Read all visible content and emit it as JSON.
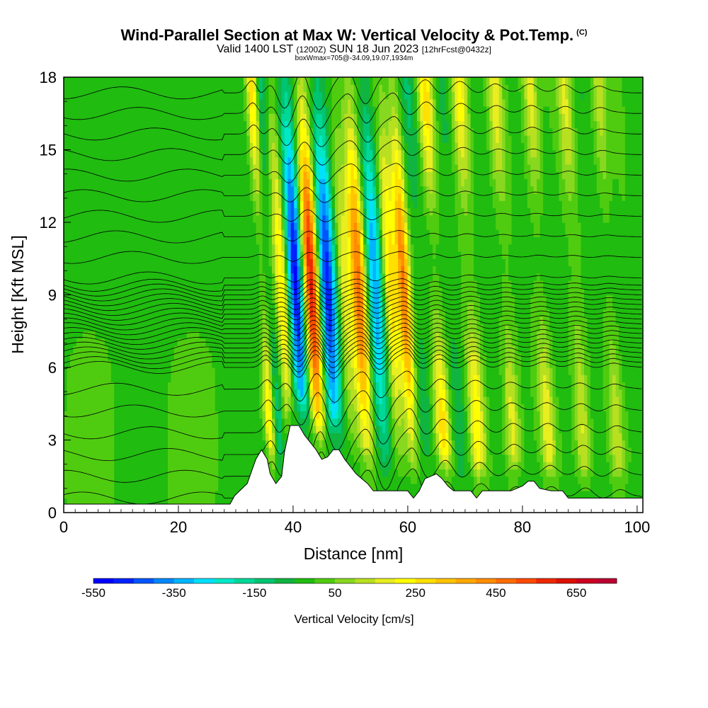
{
  "chart_data": {
    "type": "heatmap",
    "title": "Wind-Parallel Section at Max W: Vertical Velocity & Pot.Temp.",
    "title_mark": "(C)",
    "subtitle_main": "Valid 1400 LST",
    "subtitle_utc": "(1200Z)",
    "subtitle_date": "SUN 18 Jun 2023",
    "subtitle_fcst": "[12hrFcst@0432z]",
    "subtitle2": "boxWmax=705@-34.09,19.07,1934m",
    "xlabel": "Distance [nm]",
    "ylabel": "Height [Kft MSL]",
    "xlim": [
      0,
      101
    ],
    "ylim": [
      0,
      18
    ],
    "xticks": [
      0,
      20,
      40,
      60,
      80,
      100
    ],
    "yticks": [
      0,
      3,
      6,
      9,
      12,
      15,
      18
    ],
    "colorbar": {
      "label": "Vertical Velocity [cm/s]",
      "min": -550,
      "max": 750,
      "step": 50,
      "tick_values": [
        -550,
        -350,
        -150,
        50,
        250,
        450,
        650
      ],
      "colors": [
        "#0000ff",
        "#0022ff",
        "#0055ff",
        "#0088ff",
        "#00b4ff",
        "#00e0ff",
        "#00e8c8",
        "#00d898",
        "#00c470",
        "#10b440",
        "#20bc10",
        "#50cc10",
        "#88d820",
        "#b8e020",
        "#e8ee20",
        "#ffff00",
        "#ffe000",
        "#ffc400",
        "#ffa800",
        "#ff8c00",
        "#ff6c00",
        "#ff4a00",
        "#ee2800",
        "#dd1000",
        "#cc0020",
        "#bb0030"
      ]
    },
    "velocity_bands": [
      {
        "x": 36,
        "value": 280,
        "width": 0.9
      },
      {
        "x": 37.6,
        "value": -120,
        "width": 0.8
      },
      {
        "x": 39.5,
        "value": 300,
        "width": 1.2
      },
      {
        "x": 42.0,
        "value": -550,
        "width": 1.6
      },
      {
        "x": 44.5,
        "value": 705,
        "width": 1.6
      },
      {
        "x": 47.3,
        "value": -500,
        "width": 1.6
      },
      {
        "x": 50.2,
        "value": 180,
        "width": 1.2
      },
      {
        "x": 52.8,
        "value": 500,
        "width": 1.4
      },
      {
        "x": 55.7,
        "value": -330,
        "width": 1.4
      },
      {
        "x": 58.4,
        "value": 300,
        "width": 1.3
      },
      {
        "x": 60.7,
        "value": 450,
        "width": 1.1
      },
      {
        "x": 63.2,
        "value": -80,
        "width": 1.3
      },
      {
        "x": 66.2,
        "value": 300,
        "width": 1.3
      },
      {
        "x": 69.2,
        "value": -60,
        "width": 1.3
      },
      {
        "x": 72.2,
        "value": 260,
        "width": 1.4
      },
      {
        "x": 75.2,
        "value": -20,
        "width": 1.3
      },
      {
        "x": 78.4,
        "value": 200,
        "width": 1.3
      },
      {
        "x": 81.5,
        "value": 10,
        "width": 1.3
      },
      {
        "x": 84.5,
        "value": 200,
        "width": 1.3
      },
      {
        "x": 87.5,
        "value": 10,
        "width": 1.2
      },
      {
        "x": 90.5,
        "value": 180,
        "width": 1.3
      },
      {
        "x": 93.5,
        "value": -20,
        "width": 1.3
      },
      {
        "x": 96.5,
        "value": 150,
        "width": 1.3
      },
      {
        "x": 99.5,
        "value": 30,
        "width": 1.2
      }
    ],
    "terrain": [
      [
        0,
        0.35
      ],
      [
        29,
        0.35
      ],
      [
        29.8,
        0.7
      ],
      [
        32,
        1.2
      ],
      [
        33.5,
        2.2
      ],
      [
        34.5,
        2.6
      ],
      [
        35.5,
        2.2
      ],
      [
        36,
        1.6
      ],
      [
        37,
        1.2
      ],
      [
        38,
        1.5
      ],
      [
        38.5,
        2.5
      ],
      [
        39.5,
        3.6
      ],
      [
        41,
        3.6
      ],
      [
        42,
        3.2
      ],
      [
        43,
        2.9
      ],
      [
        44,
        2.6
      ],
      [
        45,
        2.2
      ],
      [
        46,
        2.3
      ],
      [
        47,
        2.6
      ],
      [
        48,
        2.6
      ],
      [
        49,
        2.2
      ],
      [
        50,
        1.9
      ],
      [
        51,
        1.6
      ],
      [
        52,
        1.4
      ],
      [
        53,
        1.2
      ],
      [
        54,
        0.9
      ],
      [
        58,
        0.9
      ],
      [
        60,
        0.9
      ],
      [
        61,
        0.6
      ],
      [
        62,
        0.9
      ],
      [
        63,
        1.4
      ],
      [
        65,
        1.6
      ],
      [
        66,
        1.4
      ],
      [
        67,
        1.1
      ],
      [
        68,
        0.9
      ],
      [
        71,
        0.9
      ],
      [
        72,
        0.6
      ],
      [
        73,
        0.9
      ],
      [
        78,
        0.9
      ],
      [
        80,
        1.1
      ],
      [
        81,
        1.3
      ],
      [
        82,
        1.3
      ],
      [
        83,
        1.0
      ],
      [
        85,
        0.9
      ],
      [
        87,
        0.9
      ],
      [
        88,
        0.6
      ],
      [
        101,
        0.6
      ]
    ]
  }
}
